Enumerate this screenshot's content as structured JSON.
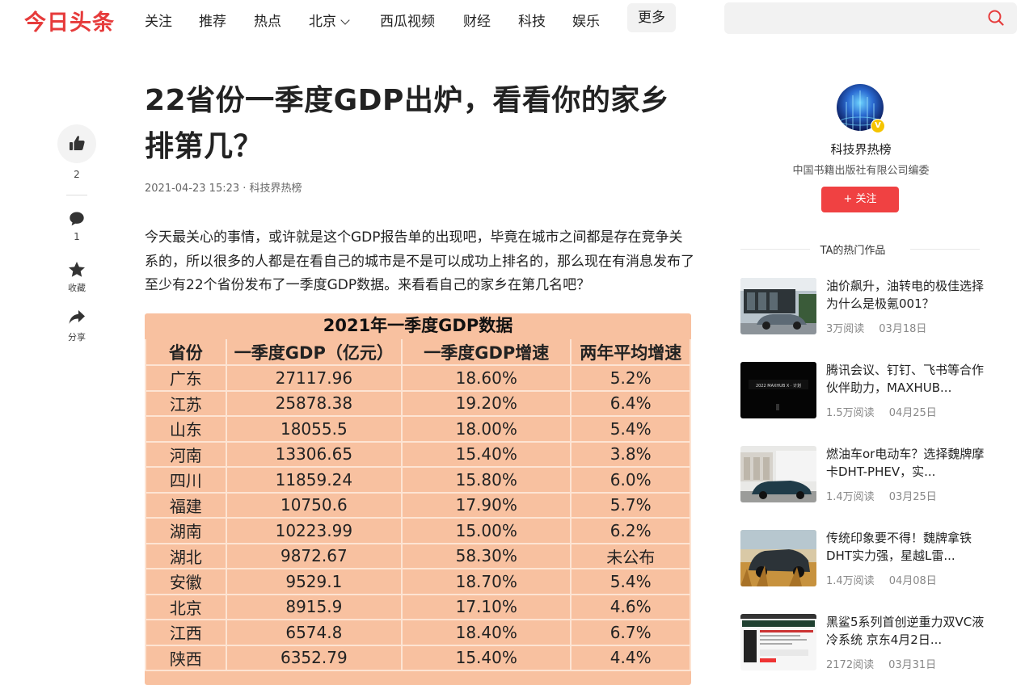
{
  "header": {
    "logo": "今日头条",
    "nav": [
      "关注",
      "推荐",
      "热点",
      "北京",
      "西瓜视频",
      "财经",
      "科技",
      "娱乐"
    ],
    "more": "更多",
    "search_placeholder": ""
  },
  "side_actions": {
    "like_count": "2",
    "comment_count": "1",
    "collect_label": "收藏",
    "share_label": "分享"
  },
  "article": {
    "title": "22省份一季度GDP出炉，看看你的家乡排第几？",
    "meta": "2021-04-23 15:23 · 科技界热榜",
    "paragraph": "今天最关心的事情，或许就是这个GDP报告单的出现吧，毕竟在城市之间都是存在竞争关系的，所以很多的人都是在看自己的城市是不是可以成功上排名的，那么现在有消息发布了至少有22个省份发布了一季度GDP数据。来看看自己的家乡在第几名吧？"
  },
  "gdp_table": {
    "title": "2021年一季度GDP数据",
    "headers": [
      "省份",
      "一季度GDP（亿元）",
      "一季度GDP增速",
      "两年平均增速"
    ],
    "rows": [
      [
        "广东",
        "27117.96",
        "18.60%",
        "5.2%"
      ],
      [
        "江苏",
        "25878.38",
        "19.20%",
        "6.4%"
      ],
      [
        "山东",
        "18055.5",
        "18.00%",
        "5.4%"
      ],
      [
        "河南",
        "13306.65",
        "15.40%",
        "3.8%"
      ],
      [
        "四川",
        "11859.24",
        "15.80%",
        "6.0%"
      ],
      [
        "福建",
        "10750.6",
        "17.90%",
        "5.7%"
      ],
      [
        "湖南",
        "10223.99",
        "15.00%",
        "6.2%"
      ],
      [
        "湖北",
        "9872.67",
        "58.30%",
        "未公布"
      ],
      [
        "安徽",
        "9529.1",
        "18.70%",
        "5.4%"
      ],
      [
        "北京",
        "8915.9",
        "17.10%",
        "4.6%"
      ],
      [
        "江西",
        "6574.8",
        "18.40%",
        "6.7%"
      ],
      [
        "陕西",
        "6352.79",
        "15.40%",
        "4.4%"
      ]
    ]
  },
  "author": {
    "name": "科技界热榜",
    "org": "中国书籍出版社有限公司编委",
    "verified_badge": "V",
    "follow_label": "+ 关注",
    "hot_works_title": "TA的热门作品"
  },
  "works": [
    {
      "title": "油价飙升，油转电的极佳选择为什么是极氪001？",
      "reads": "3万阅读",
      "date": "03月18日"
    },
    {
      "title": "腾讯会议、钉钉、飞书等合作伙伴助力，MAXHUB...",
      "reads": "1.5万阅读",
      "date": "04月25日"
    },
    {
      "title": "燃油车or电动车？选择魏牌摩卡DHT-PHEV，实...",
      "reads": "1.4万阅读",
      "date": "03月25日"
    },
    {
      "title": "传统印象要不得！魏牌拿铁DHT实力强，星越L雷...",
      "reads": "1.4万阅读",
      "date": "04月08日"
    },
    {
      "title": "黑鲨5系列首创逆重力双VC液冷系统 京东4月2日...",
      "reads": "2172阅读",
      "date": "03月31日"
    }
  ],
  "colors": {
    "brand_red": "#e63b3b",
    "follow_red": "#f04142",
    "table_bg": "#f8c1a0"
  }
}
